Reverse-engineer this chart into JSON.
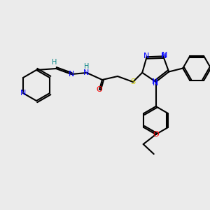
{
  "background_color": "#ebebeb",
  "atom_colors": {
    "N": "#0000ff",
    "O": "#ff0000",
    "S": "#cccc00",
    "C": "#000000",
    "H": "#008080"
  },
  "bond_color": "#000000",
  "bond_width": 1.5,
  "font_size": 7.5
}
